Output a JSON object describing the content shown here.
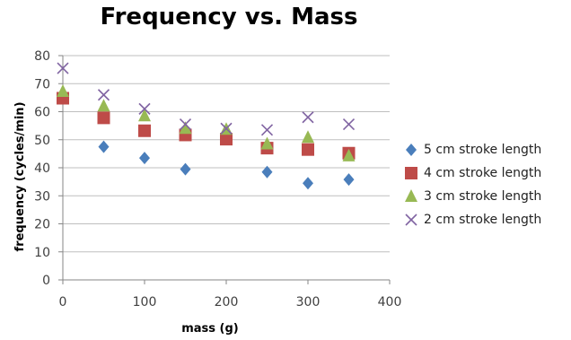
{
  "chart_data": {
    "type": "scatter",
    "title": "Frequency vs. Mass",
    "xlabel": "mass (g)",
    "ylabel": "frequency (cycles/min)",
    "xlim": [
      0,
      400
    ],
    "ylim": [
      0,
      80
    ],
    "xticks": [
      0,
      100,
      200,
      300,
      400
    ],
    "yticks": [
      0,
      10,
      20,
      30,
      40,
      50,
      60,
      70,
      80
    ],
    "grid": "horizontal",
    "legend_position": "right",
    "series": [
      {
        "name": "5 cm stroke length",
        "marker": "diamond",
        "color": "#4a7ebb",
        "points": [
          [
            50,
            47.5
          ],
          [
            100,
            43.5
          ],
          [
            150,
            39.5
          ],
          [
            250,
            38.5
          ],
          [
            300,
            34.5
          ],
          [
            350,
            35.8
          ]
        ]
      },
      {
        "name": "4 cm stroke length",
        "marker": "square",
        "color": "#be4b48",
        "points": [
          [
            0,
            64.8
          ],
          [
            50,
            57.8
          ],
          [
            100,
            53.2
          ],
          [
            150,
            51.7
          ],
          [
            200,
            50.2
          ],
          [
            250,
            47.0
          ],
          [
            300,
            46.5
          ],
          [
            350,
            45.2
          ]
        ]
      },
      {
        "name": "3 cm stroke length",
        "marker": "triangle",
        "color": "#98b954",
        "points": [
          [
            0,
            67.2
          ],
          [
            50,
            62.0
          ],
          [
            100,
            58.5
          ],
          [
            150,
            54.0
          ],
          [
            200,
            53.7
          ],
          [
            250,
            48.5
          ],
          [
            300,
            50.8
          ],
          [
            350,
            44.2
          ]
        ]
      },
      {
        "name": "2 cm stroke length",
        "marker": "x",
        "color": "#8064a2",
        "points": [
          [
            0,
            75.5
          ],
          [
            50,
            66.0
          ],
          [
            100,
            61.0
          ],
          [
            150,
            55.5
          ],
          [
            200,
            54.0
          ],
          [
            250,
            53.5
          ],
          [
            300,
            58.0
          ],
          [
            350,
            55.5
          ]
        ]
      }
    ]
  }
}
